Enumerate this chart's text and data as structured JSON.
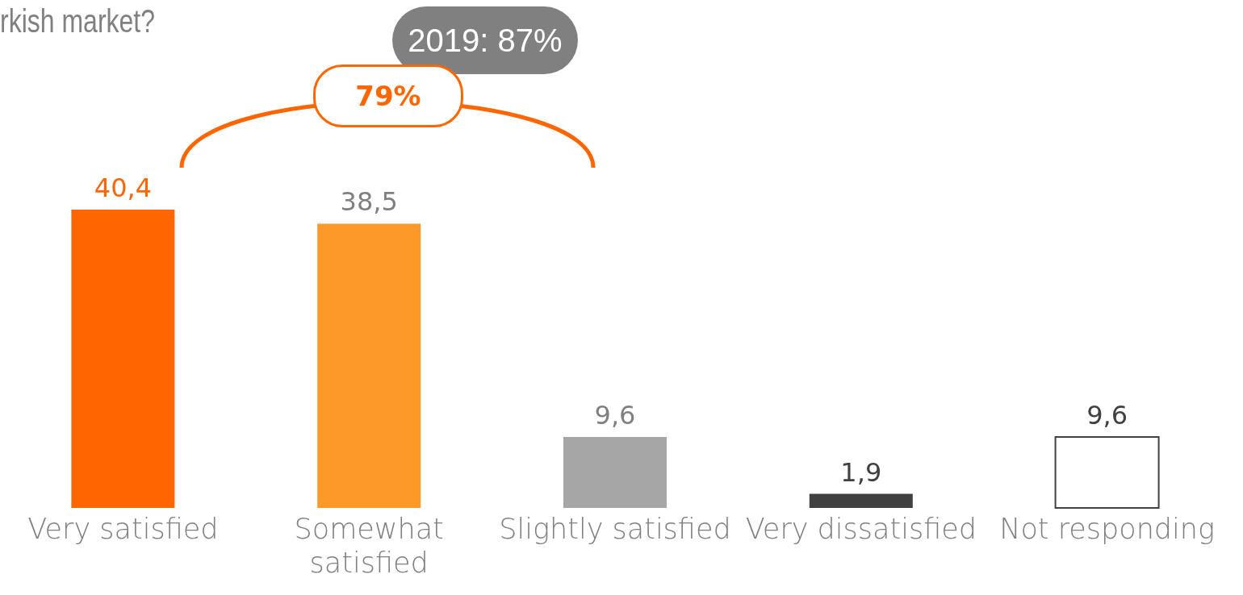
{
  "chart_data": {
    "type": "bar",
    "title": "rkish market?",
    "categories": [
      "Very satisfied",
      "Somewhat satisfied",
      "Slightly satisfied",
      "Very dissatisfied",
      "Not responding"
    ],
    "values": [
      40.4,
      38.5,
      9.6,
      1.9,
      9.6
    ],
    "colors": [
      "#ff6600",
      "#fb9a28",
      "#a6a6a6",
      "#404040",
      "#ffffff"
    ],
    "value_labels": [
      "40,4",
      "38,5",
      "9,6",
      "1,9",
      "9,6"
    ],
    "annotations": [
      "79%",
      "2019: 87%"
    ],
    "grid": false,
    "legend": false
  }
}
